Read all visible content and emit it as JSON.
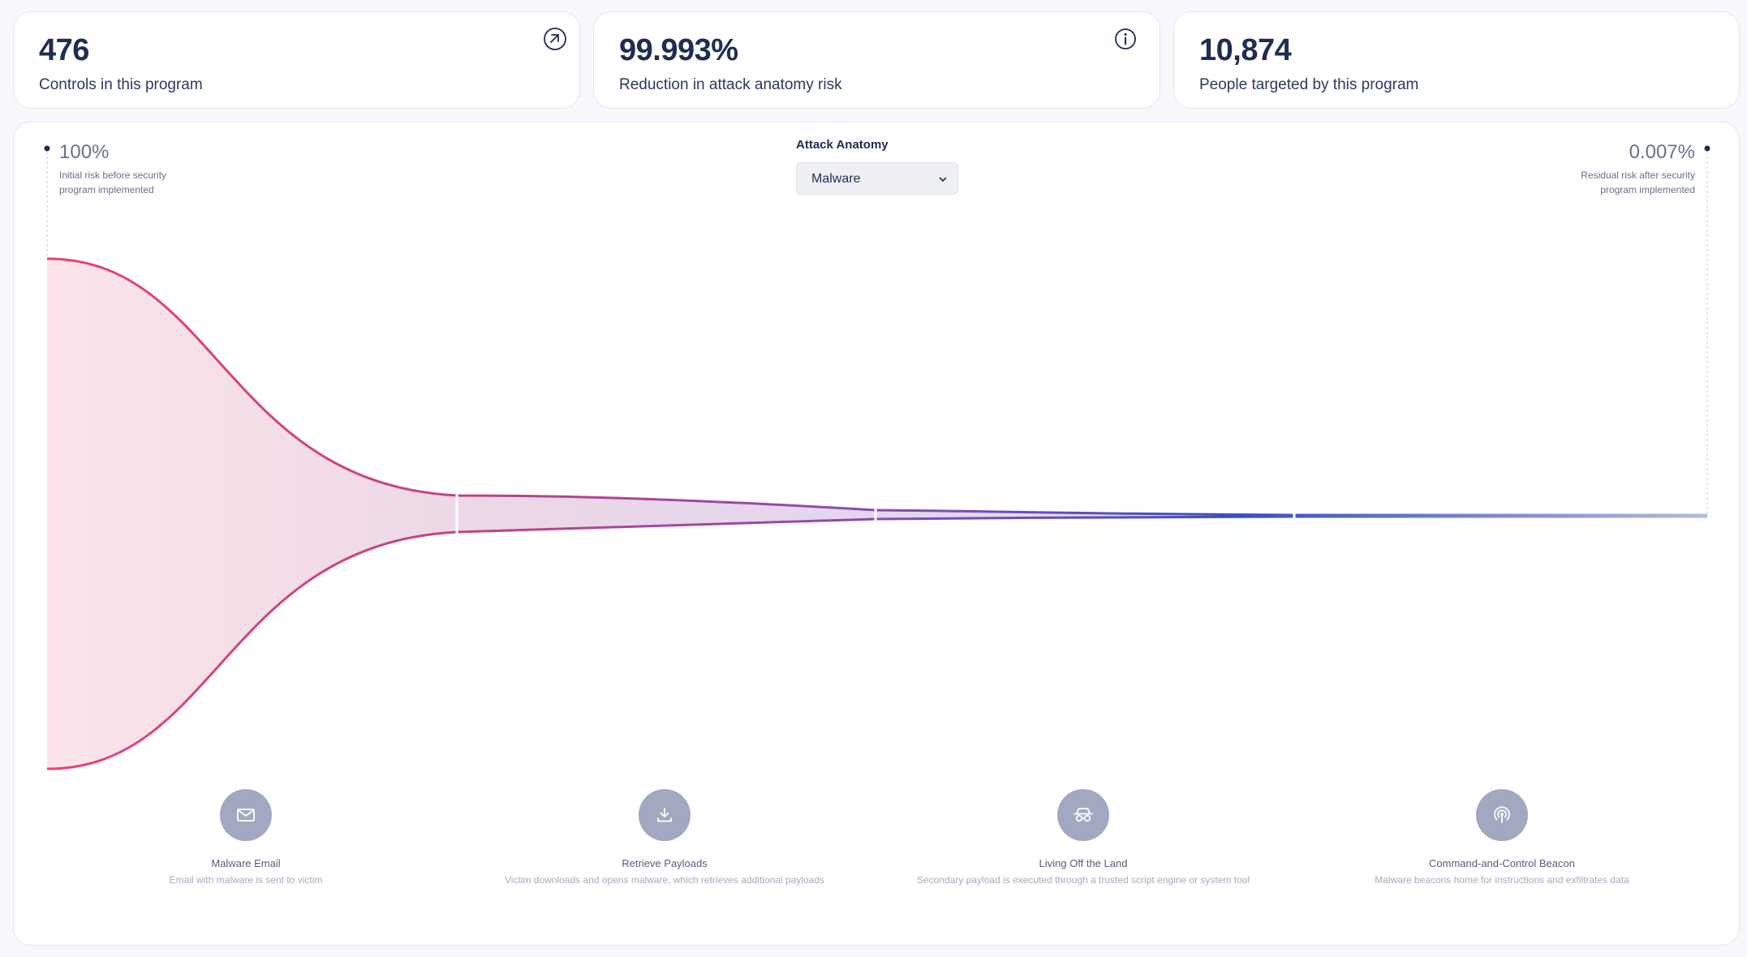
{
  "stats": [
    {
      "value": "476",
      "label": "Controls in this program",
      "icon": "open-external-icon"
    },
    {
      "value": "99.993%",
      "label": "Reduction in attack anatomy risk",
      "icon": "info-icon"
    },
    {
      "value": "10,874",
      "label": "People targeted by this program"
    }
  ],
  "funnel": {
    "initial": {
      "pct": "100%",
      "desc": "Initial risk before security program implemented"
    },
    "residual": {
      "pct": "0.007%",
      "desc": "Residual risk after security program implemented"
    },
    "attack_anatomy": {
      "label": "Attack Anatomy",
      "selected": "Malware"
    }
  },
  "stages": [
    {
      "icon": "mail-icon",
      "title": "Malware Email",
      "desc": "Email with malware is sent to victim"
    },
    {
      "icon": "download-icon",
      "title": "Retrieve Payloads",
      "desc": "Victim downloads and opens malware, which retrieves additional payloads"
    },
    {
      "icon": "incognito-icon",
      "title": "Living Off the Land",
      "desc": "Secondary payload is executed through a trusted script engine or system tool"
    },
    {
      "icon": "broadcast-icon",
      "title": "Command-and-Control Beacon",
      "desc": "Malware beacons home for instructions and exfiltrates data"
    }
  ],
  "colors": {
    "risk_high": "#e8446f",
    "risk_mid": "#8c4bb0",
    "risk_low": "#3a4fc2",
    "icon_circle": "#a1a8bf",
    "text_dark": "#1f2d52"
  }
}
